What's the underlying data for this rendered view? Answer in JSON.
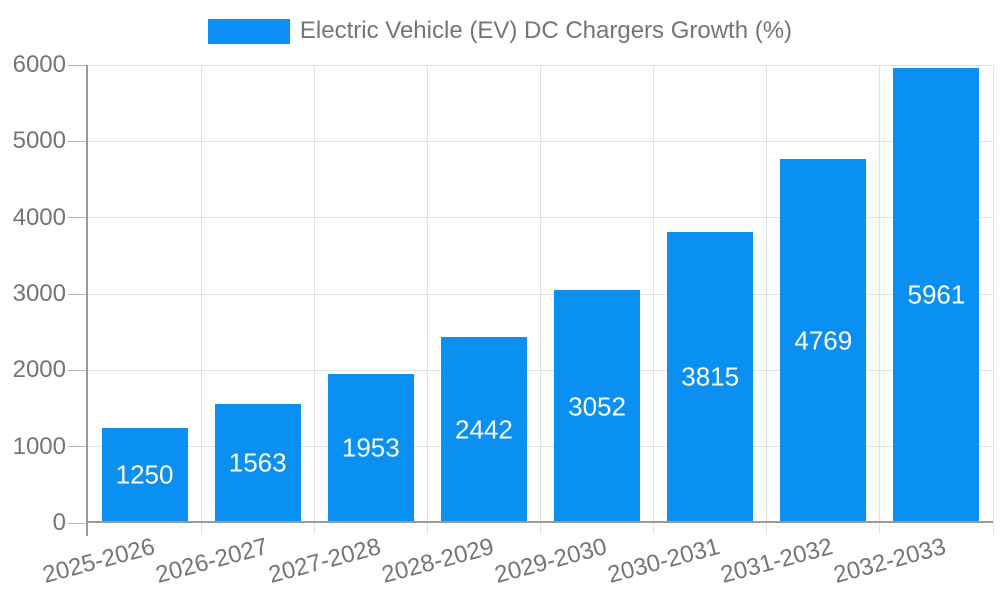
{
  "chart_data": {
    "type": "bar",
    "title": "Electric Vehicle (EV) DC Chargers Growth (%)",
    "categories": [
      "2025-2026",
      "2026-2027",
      "2027-2028",
      "2028-2029",
      "2029-2030",
      "2030-2031",
      "2031-2032",
      "2032-2033"
    ],
    "values": [
      1250,
      1563,
      1953,
      2442,
      3052,
      3815,
      4769,
      5961
    ],
    "series": [
      {
        "name": "Electric Vehicle (EV) DC Chargers Growth (%)",
        "values": [
          1250,
          1563,
          1953,
          2442,
          3052,
          3815,
          4769,
          5961
        ]
      }
    ],
    "xlabel": "",
    "ylabel": "",
    "ylim": [
      0,
      6000
    ],
    "yticks": [
      0,
      1000,
      2000,
      3000,
      4000,
      5000,
      6000
    ],
    "grid": true,
    "legend_position": "top-center",
    "value_label_position": "inside-center",
    "x_label_rotation_deg": -15,
    "colors": {
      "bar": "#0a8ff2",
      "grid": "#e2e2e2",
      "axis": "#9a9a9a",
      "tick": "#b4b4b4",
      "text": "#757575",
      "value_label": "#ffffff",
      "background": "#ffffff"
    }
  }
}
